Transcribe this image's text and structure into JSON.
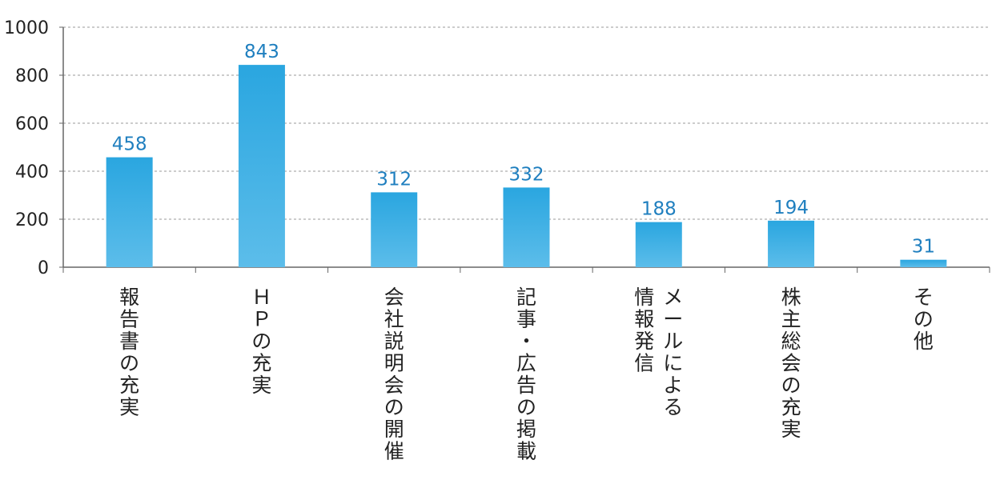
{
  "chart_data": {
    "type": "bar",
    "title": "",
    "xlabel": "",
    "ylabel": "",
    "categories": [
      [
        "報告書の充実"
      ],
      [
        "ＨＰの充実"
      ],
      [
        "会社説明会の開催"
      ],
      [
        "記事・広告の掲載"
      ],
      [
        "メールによる",
        "情報発信"
      ],
      [
        "株主総会の充実"
      ],
      [
        "その他"
      ]
    ],
    "values": [
      458,
      843,
      312,
      332,
      188,
      194,
      31
    ],
    "ylim": [
      0,
      1000
    ],
    "yticks": [
      0,
      200,
      400,
      600,
      800,
      1000
    ],
    "grid": true,
    "legend": "none",
    "colors": {
      "bar_top": "#2aa6e0",
      "bar_bottom": "#5cbdea",
      "value_label": "#1f7fbf",
      "axis": "#666666",
      "grid": "#9a9a9a",
      "text": "#222222"
    }
  }
}
